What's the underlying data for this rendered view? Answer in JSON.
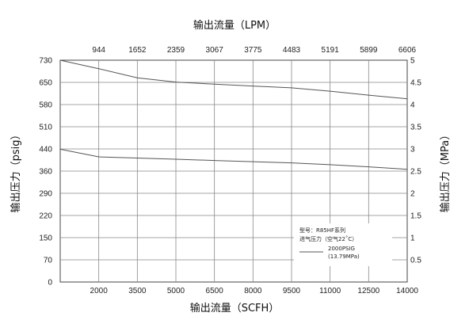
{
  "chart_data": {
    "type": "line",
    "x_axis_bottom": {
      "label": "输出流量（SCFH）",
      "range": [
        500,
        14000
      ],
      "ticks": [
        "2000",
        "3500",
        "5000",
        "6500",
        "8000",
        "9500",
        "11000",
        "12500",
        "14000"
      ]
    },
    "x_axis_top": {
      "label": "输出流量（LPM）",
      "ticks": [
        "944",
        "1652",
        "2359",
        "3067",
        "3775",
        "4483",
        "5191",
        "5899",
        "6606"
      ]
    },
    "y_axis_left": {
      "label": "输出压力（psig）",
      "range": [
        0,
        730
      ],
      "ticks": [
        "0",
        "70",
        "150",
        "220",
        "290",
        "360",
        "440",
        "510",
        "580",
        "650",
        "730"
      ]
    },
    "y_axis_right": {
      "label": "输出压力（MPa）",
      "range": [
        0,
        5
      ],
      "ticks": [
        "5",
        "4.5",
        "4",
        "3.5",
        "3",
        "2.5",
        "2",
        "1.5",
        "1",
        "0.5"
      ]
    },
    "grid": true,
    "series": [
      {
        "name": "2000PSIG (13.79MPa)",
        "x": [
          500,
          2000,
          3500,
          5000,
          6500,
          8000,
          9500,
          11000,
          12500,
          14000
        ],
        "y": [
          730,
          702,
          672,
          658,
          651,
          645,
          639,
          628,
          615,
          603
        ]
      },
      {
        "x": [
          500,
          2000,
          3500,
          5000,
          6500,
          8000,
          9500,
          11000,
          12500,
          14000
        ],
        "y": [
          437,
          412,
          408,
          404,
          400,
          396,
          392,
          386,
          379,
          371
        ]
      }
    ],
    "legend": {
      "position": "bottom-right",
      "title_lines": [
        "型号：R85HF系列",
        "进气压力（空气22˚C）"
      ],
      "entry_lines": [
        "2000PSIG",
        "(13.79MPa)"
      ]
    },
    "line_color": "#555555"
  }
}
